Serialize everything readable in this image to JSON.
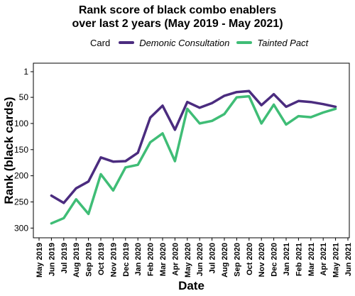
{
  "chart_data": {
    "type": "line",
    "title": "Rank score of black combo enablers",
    "subtitle": "over last 2 years (May 2019 - May 2021)",
    "xlabel": "Date",
    "ylabel": "Rank (black cards)",
    "legend_title": "Card",
    "legend_position": "top",
    "y_reversed": true,
    "ylim": [
      1,
      305
    ],
    "yticks": [
      1,
      50,
      100,
      150,
      200,
      250,
      300
    ],
    "x": [
      "May 2019",
      "Jun 2019",
      "Jul 2019",
      "Aug 2019",
      "Sep 2019",
      "Oct 2019",
      "Nov 2019",
      "Dec 2019",
      "Jan 2020",
      "Feb 2020",
      "Mar 2020",
      "Apr 2020",
      "May 2020",
      "Jun 2020",
      "Jul 2020",
      "Aug 2020",
      "Sep 2020",
      "Oct 2020",
      "Nov 2020",
      "Dec 2020",
      "Jan 2021",
      "Feb 2021",
      "Mar 2021",
      "Apr 2021",
      "May 2021",
      "Jun 2021"
    ],
    "series": [
      {
        "name": "Demonic Consultation",
        "color": "#4b2c7f",
        "values": [
          null,
          238,
          252,
          224,
          211,
          165,
          173,
          172,
          156,
          89,
          66,
          112,
          59,
          70,
          61,
          47,
          40,
          38,
          65,
          44,
          68,
          57,
          59,
          63,
          68,
          null
        ]
      },
      {
        "name": "Tainted Pact",
        "color": "#3fbd76",
        "values": [
          null,
          291,
          281,
          245,
          273,
          197,
          228,
          184,
          179,
          136,
          119,
          172,
          72,
          100,
          95,
          82,
          50,
          48,
          100,
          64,
          102,
          86,
          88,
          79,
          72,
          null
        ]
      }
    ]
  }
}
